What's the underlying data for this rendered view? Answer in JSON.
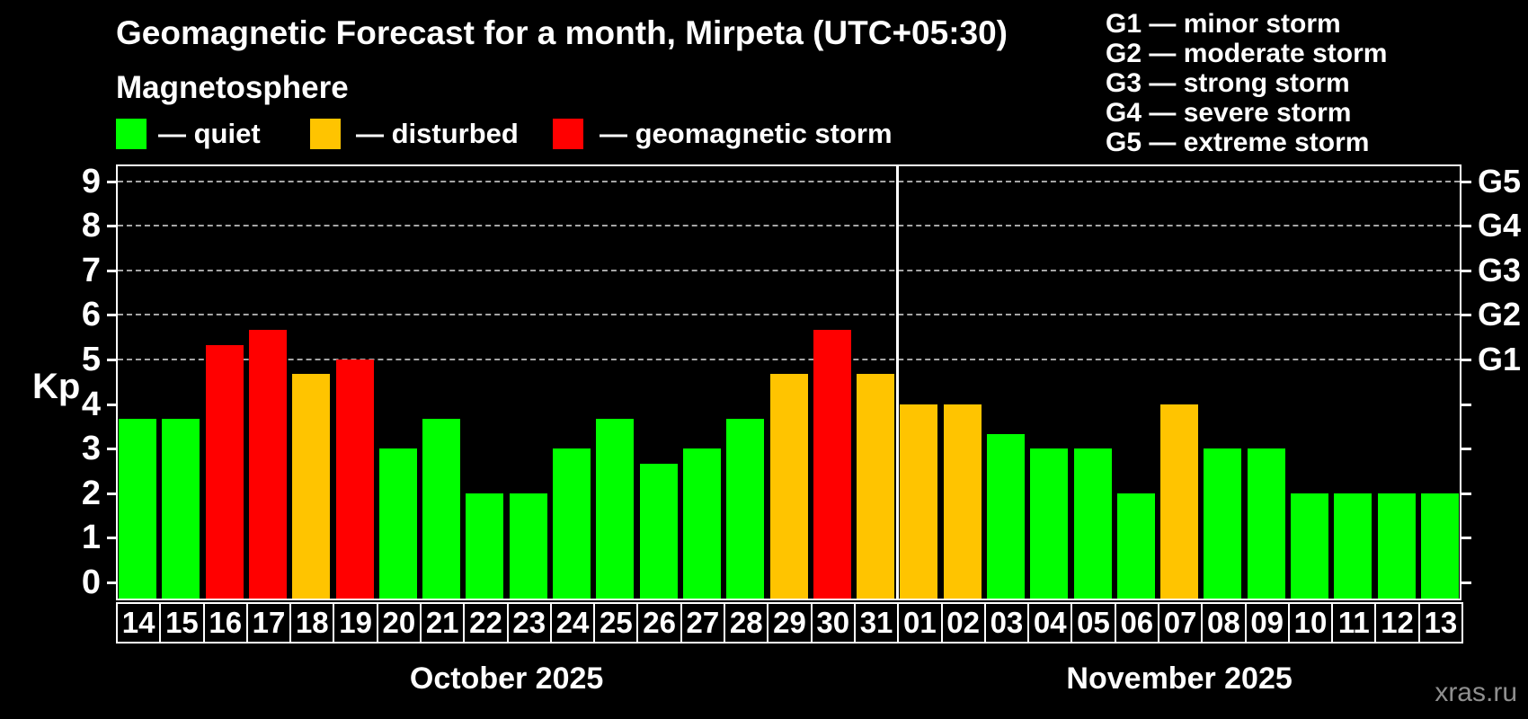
{
  "title": "Geomagnetic Forecast for a month, Mirpeta (UTC+05:30)",
  "subtitle": "Magnetosphere",
  "legend": {
    "items": [
      {
        "name": "quiet",
        "label": "— quiet",
        "color": "#00ff00"
      },
      {
        "name": "disturbed",
        "label": "— disturbed",
        "color": "#ffc400"
      },
      {
        "name": "storm",
        "label": "— geomagnetic storm",
        "color": "#ff0000"
      }
    ]
  },
  "g_legend": [
    "G1 — minor storm",
    "G2 — moderate storm",
    "G3 — strong storm",
    "G4 — severe storm",
    "G5 — extreme storm"
  ],
  "axis": {
    "y_label": "Kp",
    "y_ticks": [
      "0",
      "1",
      "2",
      "3",
      "4",
      "5",
      "6",
      "7",
      "8",
      "9"
    ],
    "g_ticks": [
      {
        "label": "G1",
        "kp": 5
      },
      {
        "label": "G2",
        "kp": 6
      },
      {
        "label": "G3",
        "kp": 7
      },
      {
        "label": "G4",
        "kp": 8
      },
      {
        "label": "G5",
        "kp": 9
      }
    ]
  },
  "watermark": "xras.ru",
  "chart_data": {
    "type": "bar",
    "title": "Geomagnetic Forecast for a month, Mirpeta (UTC+05:30)",
    "xlabel": "",
    "ylabel": "Kp",
    "ylim": [
      0,
      9.4
    ],
    "gridlines_kp": [
      5,
      6,
      7,
      8,
      9
    ],
    "legend_position": "top-left",
    "months": [
      {
        "label": "October 2025",
        "days": [
          {
            "day": "14",
            "kp": 3.67,
            "status": "quiet"
          },
          {
            "day": "15",
            "kp": 3.67,
            "status": "quiet"
          },
          {
            "day": "16",
            "kp": 5.33,
            "status": "storm"
          },
          {
            "day": "17",
            "kp": 5.67,
            "status": "storm"
          },
          {
            "day": "18",
            "kp": 4.67,
            "status": "disturbed"
          },
          {
            "day": "19",
            "kp": 5.0,
            "status": "storm"
          },
          {
            "day": "20",
            "kp": 3.0,
            "status": "quiet"
          },
          {
            "day": "21",
            "kp": 3.67,
            "status": "quiet"
          },
          {
            "day": "22",
            "kp": 2.0,
            "status": "quiet"
          },
          {
            "day": "23",
            "kp": 2.0,
            "status": "quiet"
          },
          {
            "day": "24",
            "kp": 3.0,
            "status": "quiet"
          },
          {
            "day": "25",
            "kp": 3.67,
            "status": "quiet"
          },
          {
            "day": "26",
            "kp": 2.67,
            "status": "quiet"
          },
          {
            "day": "27",
            "kp": 3.0,
            "status": "quiet"
          },
          {
            "day": "28",
            "kp": 3.67,
            "status": "quiet"
          },
          {
            "day": "29",
            "kp": 4.67,
            "status": "disturbed"
          },
          {
            "day": "30",
            "kp": 5.67,
            "status": "storm"
          },
          {
            "day": "31",
            "kp": 4.67,
            "status": "disturbed"
          }
        ]
      },
      {
        "label": "November 2025",
        "days": [
          {
            "day": "01",
            "kp": 4.0,
            "status": "disturbed"
          },
          {
            "day": "02",
            "kp": 4.0,
            "status": "disturbed"
          },
          {
            "day": "03",
            "kp": 3.33,
            "status": "quiet"
          },
          {
            "day": "04",
            "kp": 3.0,
            "status": "quiet"
          },
          {
            "day": "05",
            "kp": 3.0,
            "status": "quiet"
          },
          {
            "day": "06",
            "kp": 2.0,
            "status": "quiet"
          },
          {
            "day": "07",
            "kp": 4.0,
            "status": "disturbed"
          },
          {
            "day": "08",
            "kp": 3.0,
            "status": "quiet"
          },
          {
            "day": "09",
            "kp": 3.0,
            "status": "quiet"
          },
          {
            "day": "10",
            "kp": 2.0,
            "status": "quiet"
          },
          {
            "day": "11",
            "kp": 2.0,
            "status": "quiet"
          },
          {
            "day": "12",
            "kp": 2.0,
            "status": "quiet"
          },
          {
            "day": "13",
            "kp": 2.0,
            "status": "quiet"
          }
        ]
      }
    ]
  }
}
